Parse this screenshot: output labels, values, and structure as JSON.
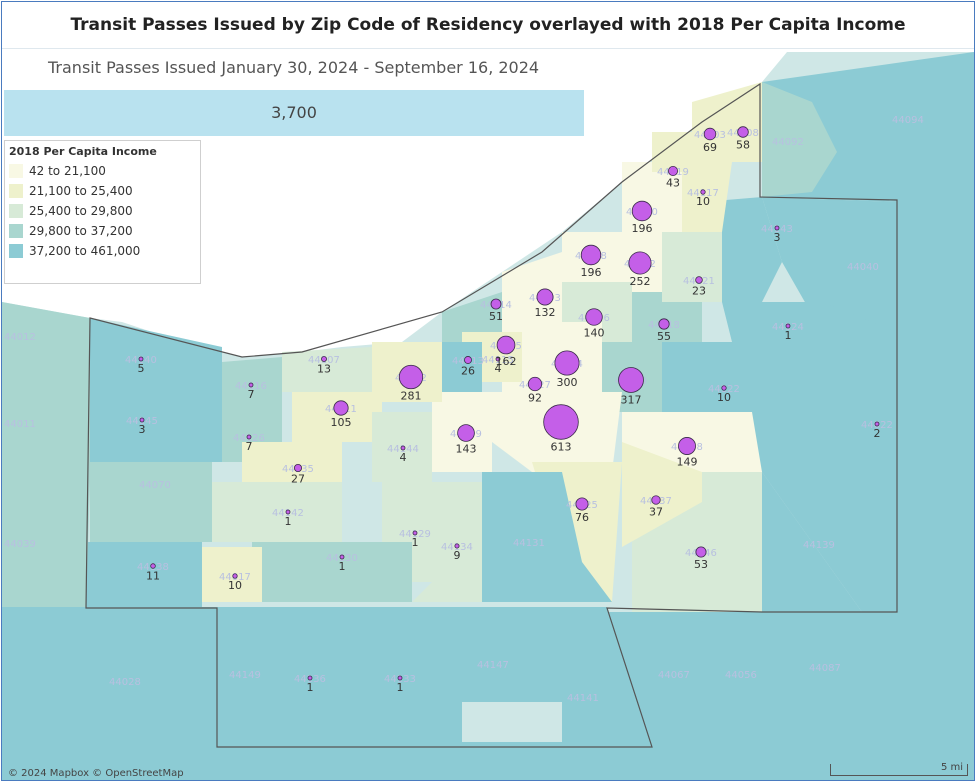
{
  "title": "Transit Passes Issued by Zip Code of Residency overlayed with 2018 Per Capita Income",
  "subtitle": "Transit Passes Issued January 30, 2024 - September 16, 2024",
  "total": "3,700",
  "legend": {
    "title": "2018 Per Capita Income",
    "items": [
      {
        "label": "42 to 21,100",
        "color": "#f8f8e4"
      },
      {
        "label": "21,100 to 25,400",
        "color": "#eef1cc"
      },
      {
        "label": "25,400 to 29,800",
        "color": "#d7ead7"
      },
      {
        "label": "29,800 to 37,200",
        "color": "#a9d6cf"
      },
      {
        "label": "37,200 to 461,000",
        "color": "#8ccbd4"
      }
    ]
  },
  "attribution": "© 2024 Mapbox © OpenStreetMap",
  "scale_label": "5 mi",
  "bubble_color": "#c45fe8",
  "zip_data": [
    {
      "zip": "44103",
      "value": "69"
    },
    {
      "zip": "44108",
      "value": "58"
    },
    {
      "zip": "44119",
      "value": "43"
    },
    {
      "zip": "44117",
      "value": "10"
    },
    {
      "zip": "44110",
      "value": "196"
    },
    {
      "zip": "44143",
      "value": "3"
    },
    {
      "zip": "44108",
      "value": "196"
    },
    {
      "zip": "44112",
      "value": "252"
    },
    {
      "zip": "44121",
      "value": "23"
    },
    {
      "zip": "44114",
      "value": "51"
    },
    {
      "zip": "44103",
      "value": "132"
    },
    {
      "zip": "44106",
      "value": "140"
    },
    {
      "zip": "44118",
      "value": "55"
    },
    {
      "zip": "44124",
      "value": "1"
    },
    {
      "zip": "44107",
      "value": "13"
    },
    {
      "zip": "44140",
      "value": "5"
    },
    {
      "zip": "44116",
      "value": "7"
    },
    {
      "zip": "44102",
      "value": "281"
    },
    {
      "zip": "44113",
      "value": "26"
    },
    {
      "zip": "44115",
      "value": "4"
    },
    {
      "zip": "44115",
      "value": "162"
    },
    {
      "zip": "44104",
      "value": "300"
    },
    {
      "zip": "44127",
      "value": "92"
    },
    {
      "zip": "44120",
      "value": "317"
    },
    {
      "zip": "44122",
      "value": "10"
    },
    {
      "zip": "44145",
      "value": "3"
    },
    {
      "zip": "44111",
      "value": "105"
    },
    {
      "zip": "44126",
      "value": "7"
    },
    {
      "zip": "44144",
      "value": "4"
    },
    {
      "zip": "44109",
      "value": "143"
    },
    {
      "zip": "44105",
      "value": "613"
    },
    {
      "zip": "44128",
      "value": "149"
    },
    {
      "zip": "44022",
      "value": "2"
    },
    {
      "zip": "44135",
      "value": "27"
    },
    {
      "zip": "44142",
      "value": "1"
    },
    {
      "zip": "44129",
      "value": "1"
    },
    {
      "zip": "44134",
      "value": "9"
    },
    {
      "zip": "44125",
      "value": "76"
    },
    {
      "zip": "44137",
      "value": "37"
    },
    {
      "zip": "44146",
      "value": "53"
    },
    {
      "zip": "44130",
      "value": "1"
    },
    {
      "zip": "44138",
      "value": "11"
    },
    {
      "zip": "44017",
      "value": "10"
    },
    {
      "zip": "44136",
      "value": "1"
    },
    {
      "zip": "44133",
      "value": "1"
    }
  ],
  "other_zip_labels": [
    "44092",
    "44094",
    "44040",
    "44012",
    "44011",
    "44070",
    "44039",
    "44131",
    "44139",
    "44028",
    "44149",
    "44147",
    "44141",
    "44067",
    "44056",
    "44087"
  ]
}
